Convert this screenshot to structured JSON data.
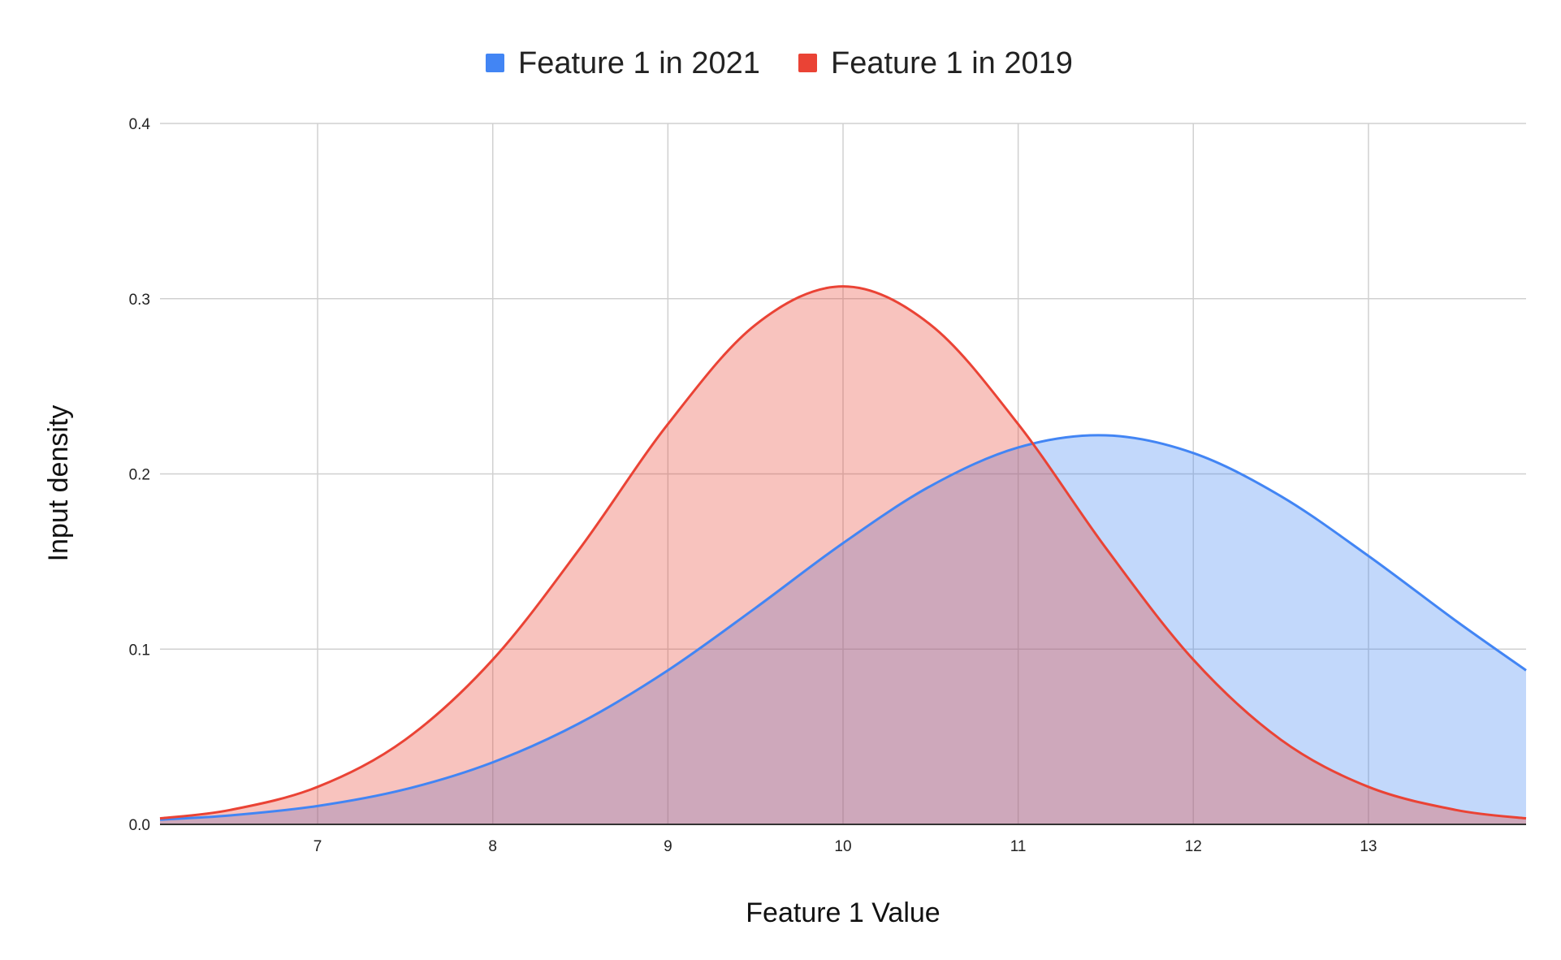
{
  "chart_data": {
    "type": "area",
    "title": "",
    "xlabel": "Feature 1 Value",
    "ylabel": "Input density",
    "xlim": [
      6.1,
      13.9
    ],
    "ylim": [
      0,
      0.4
    ],
    "x_ticks": [
      "7",
      "8",
      "9",
      "10",
      "11",
      "12",
      "13"
    ],
    "y_ticks": [
      "0.0",
      "0.1",
      "0.2",
      "0.3",
      "0.4"
    ],
    "grid": true,
    "legend_position": "top",
    "x": [
      6.1,
      6.5,
      7,
      7.5,
      8,
      8.5,
      9,
      9.5,
      10,
      10.5,
      11,
      11.5,
      12,
      12.5,
      13,
      13.5,
      13.9
    ],
    "series": [
      {
        "name": "Feature 1 in 2021",
        "color": "#4285f4",
        "values": [
          0.0027,
          0.0051,
          0.0105,
          0.02,
          0.0354,
          0.058,
          0.0879,
          0.1235,
          0.1605,
          0.1931,
          0.2151,
          0.222,
          0.2119,
          0.1873,
          0.1532,
          0.1161,
          0.0879
        ]
      },
      {
        "name": "Feature 1 in 2019",
        "color": "#ea4335",
        "values": [
          0.0034,
          0.0082,
          0.0214,
          0.0483,
          0.094,
          0.1578,
          0.2284,
          0.2851,
          0.307,
          0.2851,
          0.2284,
          0.1578,
          0.094,
          0.0483,
          0.0214,
          0.0082,
          0.0034
        ]
      }
    ]
  }
}
